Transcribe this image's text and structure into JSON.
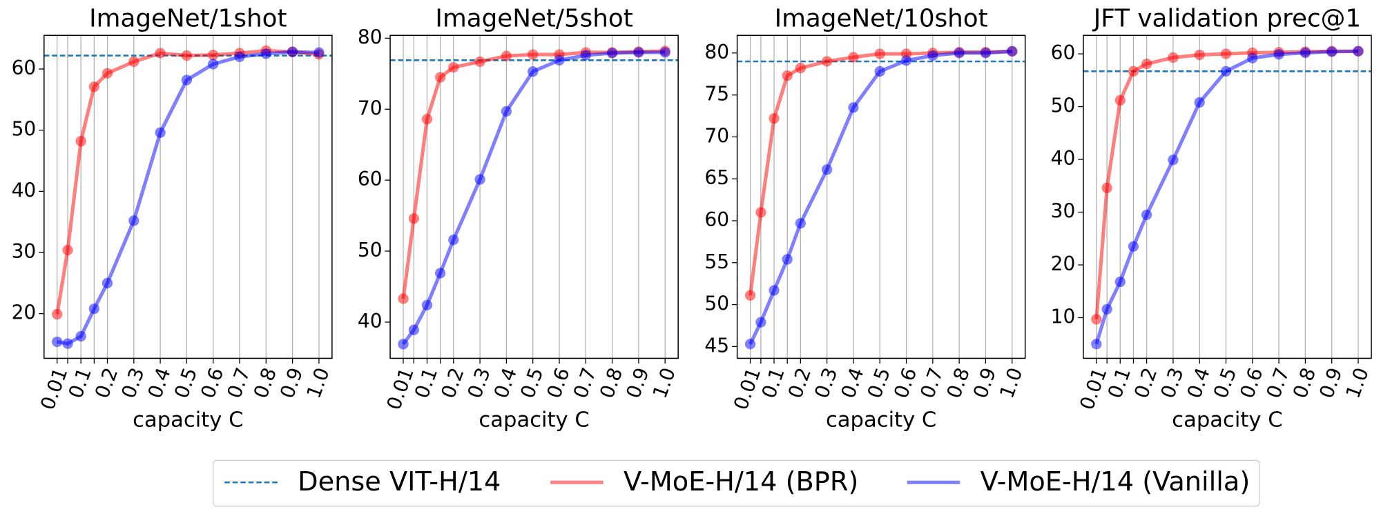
{
  "legend": [
    {
      "name": "Dense VIT-H/14",
      "color": "#1f77b4",
      "style": "dashed"
    },
    {
      "name": "V-MoE-H/14 (BPR)",
      "color": "#ff0000",
      "style": "solid"
    },
    {
      "name": "V-MoE-H/14 (Vanilla)",
      "color": "#0000ff",
      "style": "solid"
    }
  ],
  "chart_data": [
    {
      "type": "line",
      "title": "ImageNet/1shot",
      "xlabel": "capacity C",
      "grid": true,
      "x": [
        0.01,
        0.05,
        0.1,
        0.15,
        0.2,
        0.3,
        0.4,
        0.5,
        0.6,
        0.7,
        0.8,
        0.9,
        1.0
      ],
      "xlim": [
        -0.0395,
        1.0495
      ],
      "xticks": [
        0.01,
        0.1,
        0.2,
        0.3,
        0.4,
        0.5,
        0.6,
        0.7,
        0.8,
        0.9,
        {
          "value": 1,
          "label": "1.0"
        }
      ],
      "minor_xticks": [
        0.05,
        0.15
      ],
      "ylim": [
        12.7,
        65.5
      ],
      "yticks": [
        20,
        30,
        40,
        50,
        60
      ],
      "reference": 62.2,
      "series": [
        {
          "values": [
            19.9,
            30.4,
            48.2,
            57.1,
            59.3,
            61.2,
            62.6,
            62.2,
            62.3,
            62.6,
            63.0,
            62.8,
            62.4
          ]
        },
        {
          "values": [
            15.4,
            15.1,
            16.3,
            20.8,
            25.0,
            35.2,
            49.6,
            58.2,
            60.8,
            62.0,
            62.5,
            62.8,
            62.7
          ]
        }
      ]
    },
    {
      "type": "line",
      "title": "ImageNet/5shot",
      "xlabel": "capacity C",
      "grid": true,
      "x": [
        0.01,
        0.05,
        0.1,
        0.15,
        0.2,
        0.3,
        0.4,
        0.5,
        0.6,
        0.7,
        0.8,
        0.9,
        1.0
      ],
      "xlim": [
        -0.0395,
        1.0495
      ],
      "xticks": [
        0.01,
        0.1,
        0.2,
        0.3,
        0.4,
        0.5,
        0.6,
        0.7,
        0.8,
        0.9,
        {
          "value": 1,
          "label": "1.0"
        }
      ],
      "minor_xticks": [
        0.05,
        0.15
      ],
      "ylim": [
        34.9,
        80.4
      ],
      "yticks": [
        40,
        50,
        60,
        70,
        80
      ],
      "reference": 76.9,
      "series": [
        {
          "values": [
            43.3,
            54.6,
            68.6,
            74.5,
            75.9,
            76.7,
            77.5,
            77.7,
            77.7,
            78.0,
            78.0,
            78.1,
            78.2
          ]
        },
        {
          "values": [
            36.9,
            38.9,
            42.4,
            46.9,
            51.6,
            60.1,
            69.7,
            75.3,
            76.9,
            77.6,
            77.9,
            78.0,
            78.0
          ]
        }
      ]
    },
    {
      "type": "line",
      "title": "ImageNet/10shot",
      "xlabel": "capacity C",
      "grid": true,
      "x": [
        0.01,
        0.05,
        0.1,
        0.15,
        0.2,
        0.3,
        0.4,
        0.5,
        0.6,
        0.7,
        0.8,
        0.9,
        1.0
      ],
      "xlim": [
        -0.0395,
        1.0495
      ],
      "xticks": [
        0.01,
        0.1,
        0.2,
        0.3,
        0.4,
        0.5,
        0.6,
        0.7,
        0.8,
        0.9,
        {
          "value": 1,
          "label": "1.0"
        }
      ],
      "minor_xticks": [
        0.05,
        0.15
      ],
      "ylim": [
        43.6,
        82.1
      ],
      "yticks": [
        45,
        50,
        55,
        60,
        65,
        70,
        75,
        80
      ],
      "reference": 79.0,
      "series": [
        {
          "values": [
            51.1,
            61.0,
            72.2,
            77.3,
            78.2,
            79.0,
            79.5,
            79.9,
            79.9,
            80.0,
            80.1,
            80.1,
            80.2
          ]
        },
        {
          "values": [
            45.3,
            47.9,
            51.7,
            55.4,
            59.7,
            66.1,
            73.5,
            77.8,
            79.1,
            79.7,
            80.0,
            80.0,
            80.2
          ]
        }
      ]
    },
    {
      "type": "line",
      "title": "JFT validation prec@1",
      "xlabel": "capacity C",
      "grid": true,
      "x": [
        0.01,
        0.05,
        0.1,
        0.15,
        0.2,
        0.3,
        0.4,
        0.5,
        0.6,
        0.7,
        0.8,
        0.9,
        1.0
      ],
      "xlim": [
        -0.0395,
        1.0495
      ],
      "xticks": [
        0.01,
        0.1,
        0.2,
        0.3,
        0.4,
        0.5,
        0.6,
        0.7,
        0.8,
        0.9,
        {
          "value": 1,
          "label": "1.0"
        }
      ],
      "minor_xticks": [
        0.05,
        0.15
      ],
      "ylim": [
        2.3,
        63.5
      ],
      "yticks": [
        10,
        20,
        30,
        40,
        50,
        60
      ],
      "reference": 56.7,
      "series": [
        {
          "values": [
            9.7,
            34.6,
            51.2,
            56.7,
            58.1,
            59.3,
            59.8,
            60.0,
            60.2,
            60.3,
            60.4,
            60.5,
            60.5
          ]
        },
        {
          "values": [
            5.0,
            11.6,
            16.8,
            23.5,
            29.5,
            39.9,
            50.8,
            56.7,
            59.2,
            59.9,
            60.2,
            60.4,
            60.5
          ]
        }
      ]
    }
  ]
}
